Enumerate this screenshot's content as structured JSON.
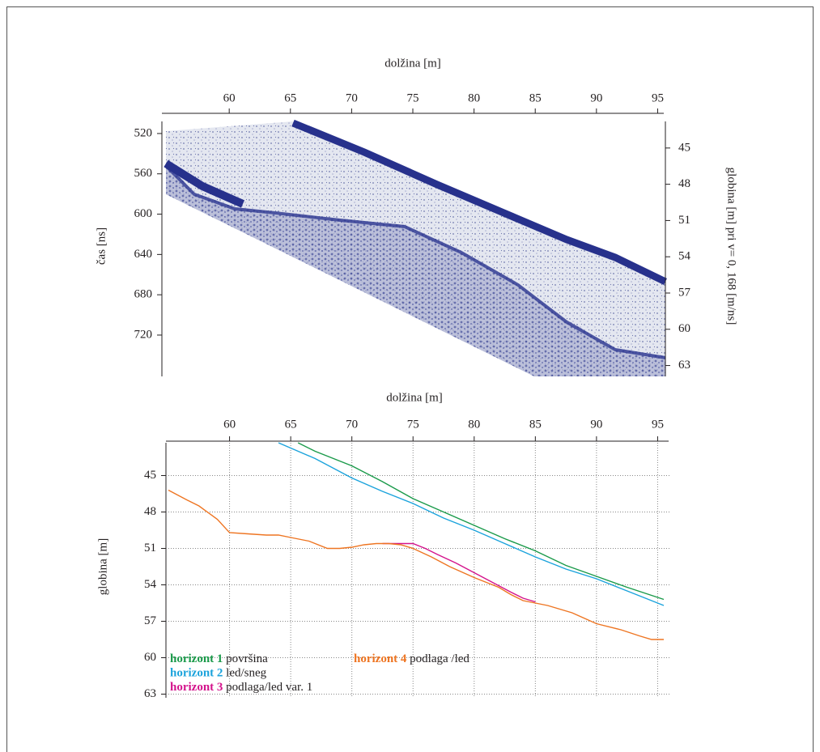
{
  "chart_data": [
    {
      "type": "image",
      "x_label": "dolžina [m]",
      "y_label": "čas [ns]",
      "y2_label": "globina [m] pri v= 0, 168 [m/ns]",
      "xlim": [
        54.5,
        95.5
      ],
      "xticks": [
        60,
        65,
        70,
        75,
        80,
        85,
        90,
        95
      ],
      "ylim": [
        508,
        761
      ],
      "yticks": [
        520,
        560,
        600,
        640,
        680,
        720
      ],
      "y2lim": [
        42.8,
        63.9
      ],
      "y2ticks": [
        45,
        48,
        51,
        54,
        57,
        60,
        63
      ],
      "inverted_y": true
    },
    {
      "type": "line",
      "x_label": "dolžina [m]",
      "y_label": "globina  [m]",
      "xlim": [
        54.8,
        95.5
      ],
      "xticks": [
        60,
        65,
        70,
        75,
        80,
        85,
        90,
        95
      ],
      "ylim": [
        42.3,
        63.3
      ],
      "yticks": [
        45,
        48,
        51,
        54,
        57,
        60,
        63
      ],
      "inverted_y": true,
      "grid": true,
      "series": [
        {
          "name": "horizont 1",
          "description": "površina",
          "color": "#1a9a4a",
          "x": [
            65.6,
            67,
            70,
            72.5,
            75,
            77.5,
            80,
            82.5,
            85,
            87.5,
            90,
            92.5,
            95.5
          ],
          "values": [
            42.3,
            43.0,
            44.2,
            45.5,
            46.9,
            48.0,
            49.1,
            50.2,
            51.2,
            52.4,
            53.3,
            54.2,
            55.2
          ]
        },
        {
          "name": "horizont 2",
          "description": "led/sneg",
          "color": "#1ba3dc",
          "x": [
            64,
            67,
            70,
            72.5,
            75,
            77.5,
            80,
            82.5,
            85,
            87.5,
            90,
            92.5,
            95.5
          ],
          "values": [
            42.3,
            43.6,
            45.2,
            46.3,
            47.3,
            48.5,
            49.5,
            50.6,
            51.7,
            52.7,
            53.5,
            54.5,
            55.7
          ]
        },
        {
          "name": "horizont 3",
          "description": "podlaga/led var. 1",
          "color": "#d4148c",
          "x": [
            72.5,
            74,
            75,
            76,
            77,
            78.5,
            80,
            81.5,
            83,
            84,
            85
          ],
          "values": [
            50.6,
            50.6,
            50.6,
            51.0,
            51.5,
            52.2,
            53.0,
            53.8,
            54.6,
            55.1,
            55.4
          ]
        },
        {
          "name": "horizont 4",
          "description": "podlaga /led",
          "color": "#ee7522",
          "x": [
            55,
            56.5,
            57.5,
            59,
            60,
            61.5,
            63,
            64,
            65,
            66.5,
            68,
            69,
            70,
            71,
            72,
            73,
            74,
            75,
            76.5,
            78,
            80,
            82,
            83,
            84,
            85,
            86,
            88,
            90,
            92,
            93.5,
            94.5,
            95.5
          ],
          "values": [
            46.2,
            47.0,
            47.5,
            48.6,
            49.7,
            49.8,
            49.9,
            49.9,
            50.1,
            50.4,
            51.0,
            51.0,
            50.9,
            50.7,
            50.6,
            50.6,
            50.7,
            51.0,
            51.7,
            52.5,
            53.4,
            54.2,
            54.8,
            55.3,
            55.5,
            55.7,
            56.3,
            57.2,
            57.7,
            58.2,
            58.5,
            58.5
          ]
        }
      ]
    }
  ]
}
